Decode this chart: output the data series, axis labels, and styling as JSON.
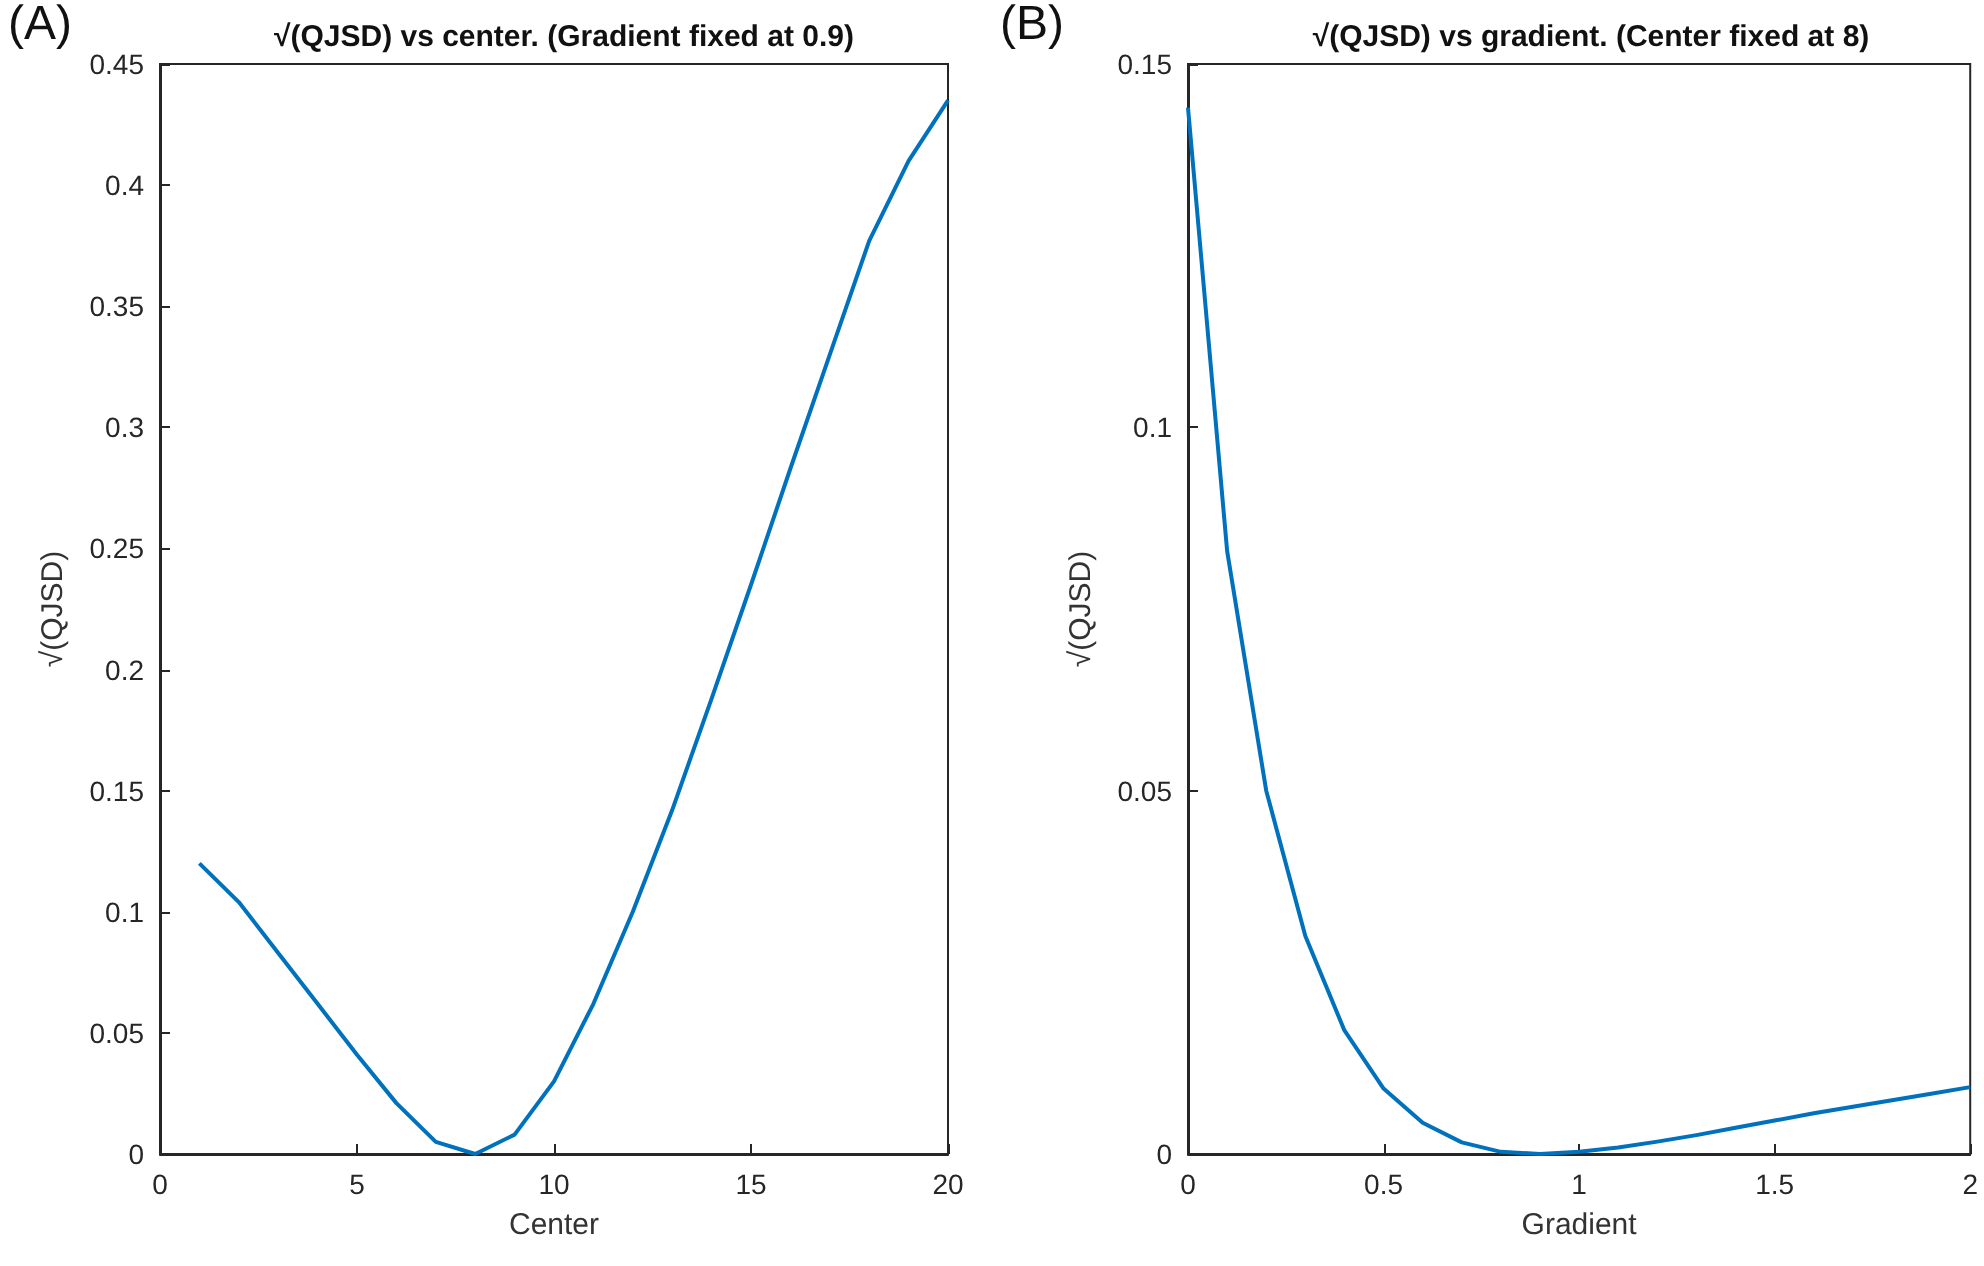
{
  "chart_data": [
    {
      "type": "line",
      "title": "√(QJSD) vs center. (Gradient fixed at 0.9)",
      "xlabel": "Center",
      "ylabel": "√(QJSD)",
      "annotations": [
        "(A)"
      ],
      "x": [
        1,
        2,
        3,
        4,
        5,
        6,
        7,
        8,
        9,
        10,
        11,
        12,
        13,
        14,
        15,
        16,
        17,
        18,
        19,
        20
      ],
      "series": [
        {
          "color": "#0072bd",
          "values": [
            0.12,
            0.104,
            0.083,
            0.062,
            0.041,
            0.021,
            0.005,
            0,
            0.008,
            0.03,
            0.062,
            0.1,
            0.142,
            0.188,
            0.235,
            0.283,
            0.33,
            0.377,
            0.41,
            0.435
          ]
        }
      ],
      "xlim": [
        0,
        20
      ],
      "xticks": [
        0,
        5,
        10,
        15,
        20
      ],
      "ylim": [
        0,
        0.45
      ],
      "yticks": [
        0,
        0.05,
        0.1,
        0.15,
        0.2,
        0.25,
        0.3,
        0.35,
        0.4,
        0.45
      ],
      "grid": false,
      "marker": "none",
      "line_style": "solid"
    },
    {
      "type": "line",
      "title": "√(QJSD) vs gradient. (Center fixed at 8)",
      "xlabel": "Gradient",
      "ylabel": "√(QJSD)",
      "annotations": [
        "(B)"
      ],
      "x": [
        0,
        0.1,
        0.2,
        0.3,
        0.4,
        0.5,
        0.6,
        0.7,
        0.8,
        0.9,
        1,
        1.1,
        1.2,
        1.3,
        1.4,
        1.5,
        1.6,
        1.7,
        1.8,
        1.9,
        2
      ],
      "series": [
        {
          "color": "#0072bd",
          "values": [
            0.144,
            0.083,
            0.05,
            0.03,
            0.017,
            0.009,
            0.0043,
            0.0016,
            0.0003,
            0,
            0.0003,
            0.0009,
            0.0017,
            0.0026,
            0.0036,
            0.0046,
            0.0056,
            0.0065,
            0.0074,
            0.0083,
            0.0092
          ]
        }
      ],
      "xlim": [
        0,
        2
      ],
      "xticks": [
        0,
        0.5,
        1,
        1.5,
        2
      ],
      "ylim": [
        0,
        0.15
      ],
      "yticks": [
        0,
        0.05,
        0.1,
        0.15
      ],
      "grid": false,
      "marker": "none",
      "line_style": "solid"
    }
  ]
}
